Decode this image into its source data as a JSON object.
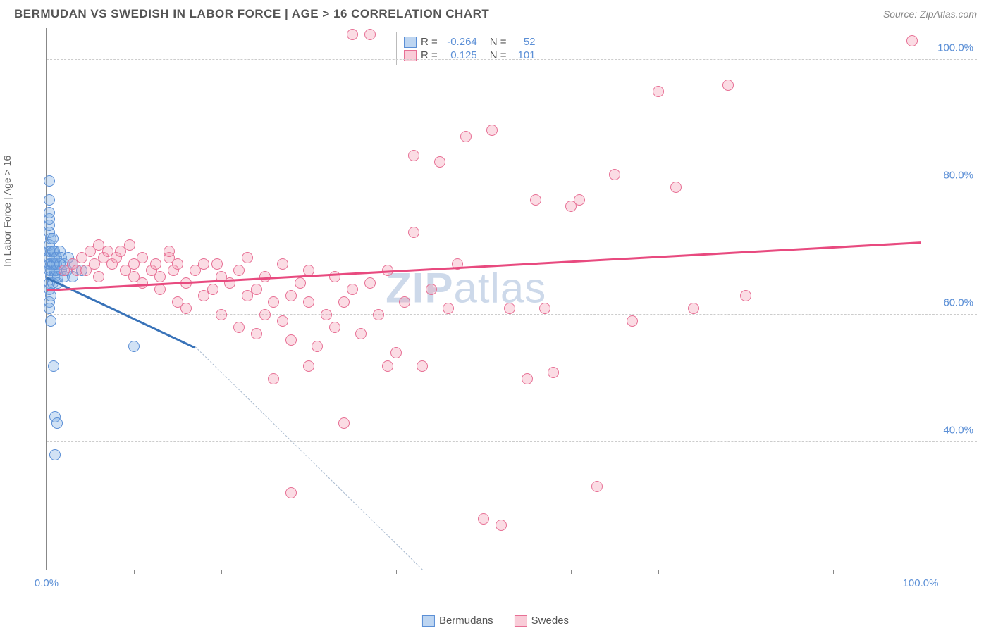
{
  "title": "BERMUDAN VS SWEDISH IN LABOR FORCE | AGE > 16 CORRELATION CHART",
  "source": "Source: ZipAtlas.com",
  "y_axis_label": "In Labor Force | Age > 16",
  "watermark": "ZIPatlas",
  "chart": {
    "type": "scatter",
    "xlim": [
      0,
      100
    ],
    "ylim": [
      20,
      105
    ],
    "x_ticks": [
      0,
      10,
      20,
      30,
      40,
      50,
      60,
      70,
      80,
      90,
      100
    ],
    "x_tick_labels": {
      "0": "0.0%",
      "100": "100.0%"
    },
    "y_ticks": [
      40,
      60,
      80,
      100
    ],
    "y_tick_labels": [
      "40.0%",
      "60.0%",
      "80.0%",
      "100.0%"
    ],
    "background_color": "#ffffff",
    "grid_color": "#cccccc",
    "marker_radius": 8,
    "colors": {
      "blue_fill": "rgba(123,171,227,0.35)",
      "blue_stroke": "#5b8fd6",
      "pink_fill": "rgba(244,154,178,0.35)",
      "pink_stroke": "#e77095",
      "blue_line": "#3973b9",
      "pink_line": "#e84a7f",
      "tick_label": "#5b8fd6",
      "text": "#555555"
    },
    "series": [
      {
        "name": "Bermudans",
        "color_key": "blue",
        "R": "-0.264",
        "N": "52",
        "trend": {
          "x1": 0,
          "y1": 66,
          "x2": 17,
          "y2": 55,
          "dashed_to_x": 43,
          "dashed_to_y": 20
        },
        "points": [
          [
            0.3,
            67
          ],
          [
            0.3,
            68
          ],
          [
            0.3,
            69
          ],
          [
            0.3,
            70
          ],
          [
            0.3,
            71
          ],
          [
            0.3,
            65
          ],
          [
            0.3,
            64
          ],
          [
            0.3,
            73
          ],
          [
            0.3,
            74
          ],
          [
            0.3,
            75
          ],
          [
            0.3,
            76
          ],
          [
            0.3,
            78
          ],
          [
            0.3,
            62
          ],
          [
            0.3,
            61
          ],
          [
            0.3,
            81
          ],
          [
            0.5,
            66
          ],
          [
            0.5,
            68
          ],
          [
            0.5,
            70
          ],
          [
            0.5,
            72
          ],
          [
            0.5,
            67
          ],
          [
            0.7,
            65
          ],
          [
            0.7,
            68
          ],
          [
            0.7,
            70
          ],
          [
            0.7,
            72
          ],
          [
            0.9,
            66
          ],
          [
            0.9,
            67
          ],
          [
            0.9,
            68
          ],
          [
            0.9,
            69
          ],
          [
            0.9,
            70
          ],
          [
            1.1,
            67
          ],
          [
            1.1,
            68
          ],
          [
            1.1,
            69
          ],
          [
            1.3,
            65
          ],
          [
            1.3,
            66
          ],
          [
            1.5,
            68
          ],
          [
            1.5,
            70
          ],
          [
            1.7,
            67
          ],
          [
            1.7,
            69
          ],
          [
            2.0,
            66
          ],
          [
            2.0,
            68
          ],
          [
            2.3,
            67
          ],
          [
            2.5,
            69
          ],
          [
            1.0,
            44
          ],
          [
            1.2,
            43
          ],
          [
            1.0,
            38
          ],
          [
            0.8,
            52
          ],
          [
            0.5,
            59
          ],
          [
            0.5,
            63
          ],
          [
            10,
            55
          ],
          [
            3,
            66
          ],
          [
            3,
            68
          ],
          [
            4,
            67
          ]
        ]
      },
      {
        "name": "Swedes",
        "color_key": "pink",
        "R": "0.125",
        "N": "101",
        "trend": {
          "x1": 0,
          "y1": 64,
          "x2": 100,
          "y2": 71.5
        },
        "points": [
          [
            2,
            67
          ],
          [
            3,
            68
          ],
          [
            3.5,
            67
          ],
          [
            4,
            69
          ],
          [
            4.5,
            67
          ],
          [
            5,
            70
          ],
          [
            5.5,
            68
          ],
          [
            6,
            71
          ],
          [
            6,
            66
          ],
          [
            6.5,
            69
          ],
          [
            7,
            70
          ],
          [
            7.5,
            68
          ],
          [
            8,
            69
          ],
          [
            8.5,
            70
          ],
          [
            9,
            67
          ],
          [
            9.5,
            71
          ],
          [
            10,
            66
          ],
          [
            10,
            68
          ],
          [
            11,
            69
          ],
          [
            11,
            65
          ],
          [
            12,
            67
          ],
          [
            12.5,
            68
          ],
          [
            13,
            66
          ],
          [
            13,
            64
          ],
          [
            14,
            69
          ],
          [
            14.5,
            67
          ],
          [
            15,
            68
          ],
          [
            15,
            62
          ],
          [
            16,
            65
          ],
          [
            17,
            67
          ],
          [
            18,
            68
          ],
          [
            18,
            63
          ],
          [
            19,
            64
          ],
          [
            19.5,
            68
          ],
          [
            20,
            66
          ],
          [
            20,
            60
          ],
          [
            21,
            65
          ],
          [
            22,
            67
          ],
          [
            22,
            58
          ],
          [
            23,
            63
          ],
          [
            23,
            69
          ],
          [
            24,
            64
          ],
          [
            24,
            57
          ],
          [
            25,
            60
          ],
          [
            25,
            66
          ],
          [
            26,
            62
          ],
          [
            26,
            50
          ],
          [
            27,
            68
          ],
          [
            27,
            59
          ],
          [
            28,
            63
          ],
          [
            28,
            56
          ],
          [
            29,
            65
          ],
          [
            30,
            62
          ],
          [
            30,
            67
          ],
          [
            30,
            52
          ],
          [
            31,
            55
          ],
          [
            32,
            60
          ],
          [
            33,
            66
          ],
          [
            33,
            58
          ],
          [
            34,
            43
          ],
          [
            34,
            62
          ],
          [
            35,
            64
          ],
          [
            36,
            57
          ],
          [
            37,
            65
          ],
          [
            37,
            104
          ],
          [
            38,
            60
          ],
          [
            39,
            52
          ],
          [
            39,
            67
          ],
          [
            40,
            54
          ],
          [
            41,
            62
          ],
          [
            42,
            73
          ],
          [
            42,
            85
          ],
          [
            43,
            52
          ],
          [
            44,
            64
          ],
          [
            45,
            84
          ],
          [
            46,
            61
          ],
          [
            47,
            68
          ],
          [
            48,
            88
          ],
          [
            50,
            28
          ],
          [
            51,
            89
          ],
          [
            52,
            27
          ],
          [
            53,
            61
          ],
          [
            55,
            50
          ],
          [
            56,
            78
          ],
          [
            57,
            61
          ],
          [
            58,
            51
          ],
          [
            60,
            77
          ],
          [
            61,
            78
          ],
          [
            63,
            33
          ],
          [
            65,
            82
          ],
          [
            67,
            59
          ],
          [
            70,
            95
          ],
          [
            72,
            80
          ],
          [
            74,
            61
          ],
          [
            78,
            96
          ],
          [
            80,
            63
          ],
          [
            28,
            32
          ],
          [
            35,
            104
          ],
          [
            16,
            61
          ],
          [
            99,
            103
          ],
          [
            14,
            70
          ]
        ]
      }
    ]
  },
  "stats_box": {
    "rows": [
      {
        "swatch": "blue",
        "R_label": "R =",
        "R_value": "-0.264",
        "N_label": "N =",
        "N_value": "52"
      },
      {
        "swatch": "pink",
        "R_label": "R =",
        "R_value": "0.125",
        "N_label": "N =",
        "N_value": "101"
      }
    ]
  },
  "legend": {
    "items": [
      {
        "swatch": "blue",
        "label": "Bermudans"
      },
      {
        "swatch": "pink",
        "label": "Swedes"
      }
    ]
  }
}
